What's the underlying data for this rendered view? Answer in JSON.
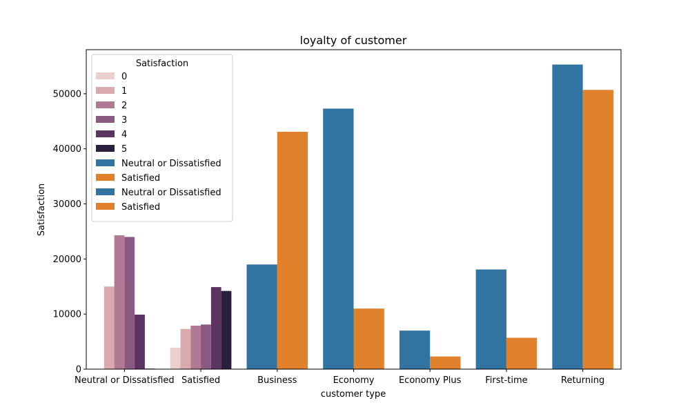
{
  "chart_data": {
    "type": "bar",
    "title": "loyalty of customer",
    "xlabel": "customer type",
    "ylabel": "Satisfaction",
    "ylim": [
      0,
      58000
    ],
    "yticks": [
      0,
      10000,
      20000,
      30000,
      40000,
      50000
    ],
    "grid": false,
    "legend_position": "upper-left",
    "legend_title": "Satisfaction",
    "categories": [
      "Neutral or Dissatisfied",
      "Satisfied",
      "Business",
      "Economy",
      "Economy Plus",
      "First-time",
      "Returning"
    ],
    "groups": [
      {
        "categories": [
          "Neutral or Dissatisfied",
          "Satisfied"
        ],
        "series": [
          {
            "name": "0",
            "color": "#ead0cb",
            "values": [
              0,
              3900
            ]
          },
          {
            "name": "1",
            "color": "#d8aaae",
            "values": [
              15000,
              7300
            ]
          },
          {
            "name": "2",
            "color": "#b27994",
            "values": [
              24300,
              7900
            ]
          },
          {
            "name": "3",
            "color": "#8c5a80",
            "values": [
              24000,
              8100
            ]
          },
          {
            "name": "4",
            "color": "#5b3461",
            "values": [
              9900,
              14900
            ]
          },
          {
            "name": "5",
            "color": "#2c1e3d",
            "values": [
              100,
              14200
            ]
          }
        ]
      },
      {
        "categories": [
          "Business",
          "Economy",
          "Economy Plus"
        ],
        "series": [
          {
            "name": "Neutral or Dissatisfied",
            "color": "#3274a1",
            "values": [
              19000,
              47300,
              7000
            ]
          },
          {
            "name": "Satisfied",
            "color": "#e1812c",
            "values": [
              43100,
              11000,
              2300
            ]
          }
        ]
      },
      {
        "categories": [
          "First-time",
          "Returning"
        ],
        "series": [
          {
            "name": "Neutral or Dissatisfied",
            "color": "#3274a1",
            "values": [
              18100,
              55300
            ]
          },
          {
            "name": "Satisfied",
            "color": "#e1812c",
            "values": [
              5700,
              50700
            ]
          }
        ]
      }
    ]
  }
}
